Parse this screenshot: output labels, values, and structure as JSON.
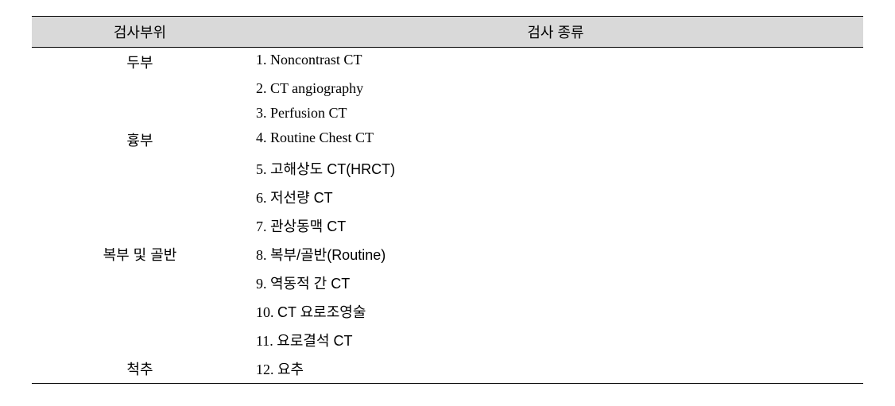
{
  "table": {
    "header": {
      "region": "검사부위",
      "type": "검사 종류"
    },
    "rows": [
      {
        "region": "두부",
        "num": "1.",
        "label": "Noncontrast CT",
        "isKorean": false
      },
      {
        "region": "",
        "num": "2.",
        "label": "CT angiography",
        "isKorean": false
      },
      {
        "region": "",
        "num": "3.",
        "label": "Perfusion CT",
        "isKorean": false
      },
      {
        "region": "흉부",
        "num": "4.",
        "label": "Routine Chest CT",
        "isKorean": false
      },
      {
        "region": "",
        "num": "5.",
        "label": "고해상도 CT(HRCT)",
        "isKorean": true
      },
      {
        "region": "",
        "num": "6.",
        "label": "저선량 CT",
        "isKorean": true
      },
      {
        "region": "",
        "num": "7.",
        "label": "관상동맥 CT",
        "isKorean": true
      },
      {
        "region": "복부 및 골반",
        "num": "8.",
        "label": "복부/골반(Routine)",
        "isKorean": true
      },
      {
        "region": "",
        "num": "9.",
        "label": "역동적 간 CT",
        "isKorean": true
      },
      {
        "region": "",
        "num": "10.",
        "label": "CT 요로조영술",
        "isKorean": true
      },
      {
        "region": "",
        "num": "11.",
        "label": "요로결석 CT",
        "isKorean": true
      },
      {
        "region": "척추",
        "num": "12.",
        "label": "요추",
        "isKorean": true
      }
    ],
    "colors": {
      "header_bg": "#d9d9d9",
      "border": "#000000",
      "text": "#000000",
      "background": "#ffffff"
    },
    "fonts": {
      "header_size": 18,
      "body_size": 18
    }
  }
}
